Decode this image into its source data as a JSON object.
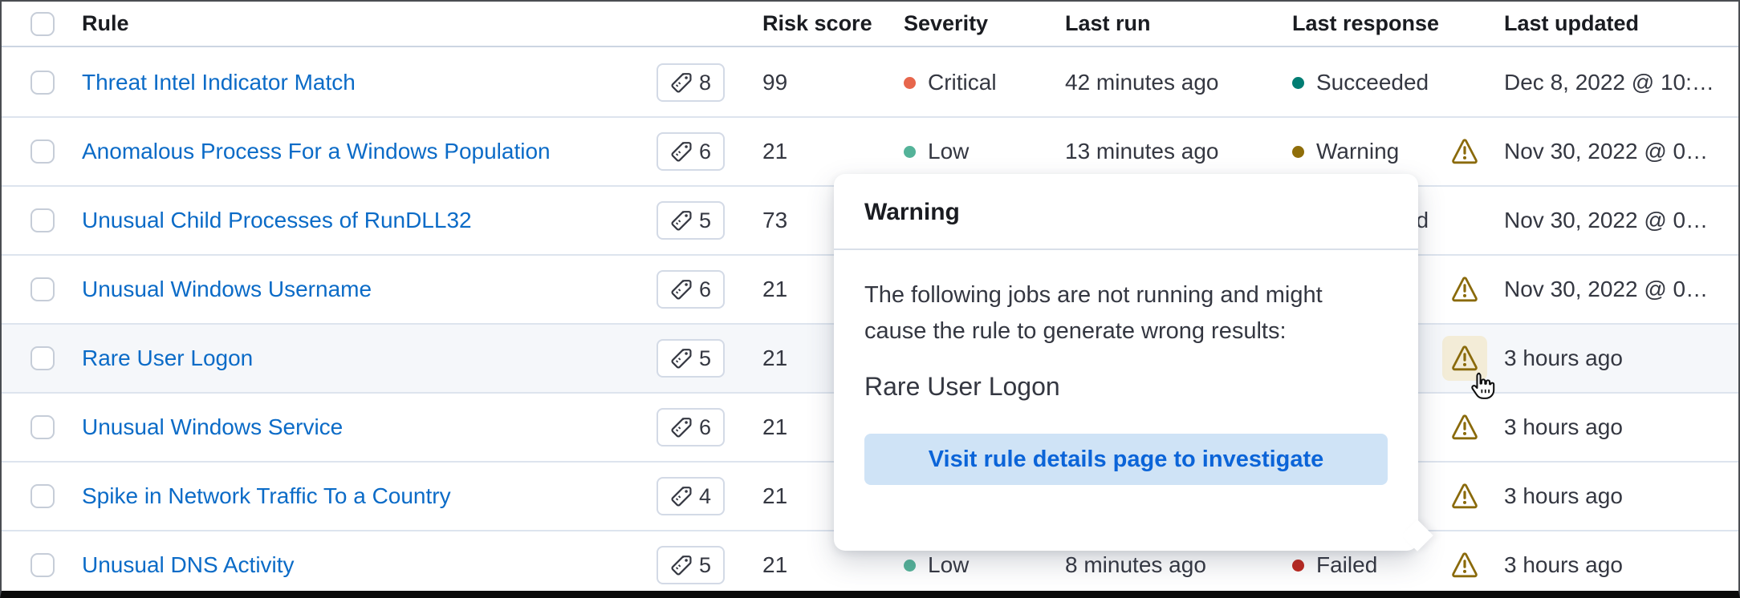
{
  "table": {
    "columns": [
      "Rule",
      "Risk score",
      "Severity",
      "Last run",
      "Last response",
      "Last updated"
    ],
    "rows": [
      {
        "rule": "Threat Intel Indicator Match",
        "tags": "8",
        "risk": "99",
        "severity": "Critical",
        "severity_color": "#e7664c",
        "last_run": "42 minutes ago",
        "response": "Succeeded",
        "response_color": "#017d73",
        "warning_icon": false,
        "updated": "Dec 8, 2022 @ 10:…"
      },
      {
        "rule": "Anomalous Process For a Windows Population",
        "tags": "6",
        "risk": "21",
        "severity": "Low",
        "severity_color": "#54b399",
        "last_run": "13 minutes ago",
        "response": "Warning",
        "response_color": "#8f6e0a",
        "warning_icon": true,
        "updated": "Nov 30, 2022 @ 0…"
      },
      {
        "rule": "Unusual Child Processes of RunDLL32",
        "tags": "5",
        "risk": "73",
        "severity": null,
        "last_run": null,
        "response": "Succeeded",
        "response_color": "#017d73",
        "warning_icon": false,
        "updated": "Nov 30, 2022 @ 0…"
      },
      {
        "rule": "Unusual Windows Username",
        "tags": "6",
        "risk": "21",
        "severity": null,
        "last_run": null,
        "response": null,
        "warning_icon": true,
        "updated": "Nov 30, 2022 @ 0…"
      },
      {
        "rule": "Rare User Logon",
        "tags": "5",
        "risk": "21",
        "severity": null,
        "last_run": null,
        "response": null,
        "warning_icon": true,
        "warning_focused": true,
        "highlighted": true,
        "updated": "3 hours ago"
      },
      {
        "rule": "Unusual Windows Service",
        "tags": "6",
        "risk": "21",
        "severity": null,
        "last_run": null,
        "response": null,
        "warning_icon": true,
        "updated": "3 hours ago"
      },
      {
        "rule": "Spike in Network Traffic To a Country",
        "tags": "4",
        "risk": "21",
        "severity": null,
        "last_run": null,
        "response": null,
        "warning_icon": true,
        "updated": "3 hours ago"
      },
      {
        "rule": "Unusual DNS Activity",
        "tags": "5",
        "risk": "21",
        "severity": "Low",
        "severity_color": "#54b399",
        "last_run": "8 minutes ago",
        "response": "Failed",
        "response_color": "#bd271e",
        "warning_icon": true,
        "updated": "3 hours ago"
      }
    ]
  },
  "popover": {
    "title": "Warning",
    "body_text": "The following jobs are not running and might cause the rule to generate wrong results:",
    "job_name": "Rare User Logon",
    "button_label": "Visit rule details page to investigate"
  },
  "colors": {
    "link_blue": "#0b6bc7",
    "warning_gold": "#8a6a0b",
    "critical": "#e7664c",
    "low": "#54b399",
    "succeeded": "#017d73",
    "warning_response": "#8f6e0a",
    "failed": "#bd271e",
    "button_bg": "#cfe3f6",
    "button_text": "#0b64d8",
    "focused_icon_bg": "#f3ecd7",
    "row_highlight_bg": "#f5f7fa"
  }
}
